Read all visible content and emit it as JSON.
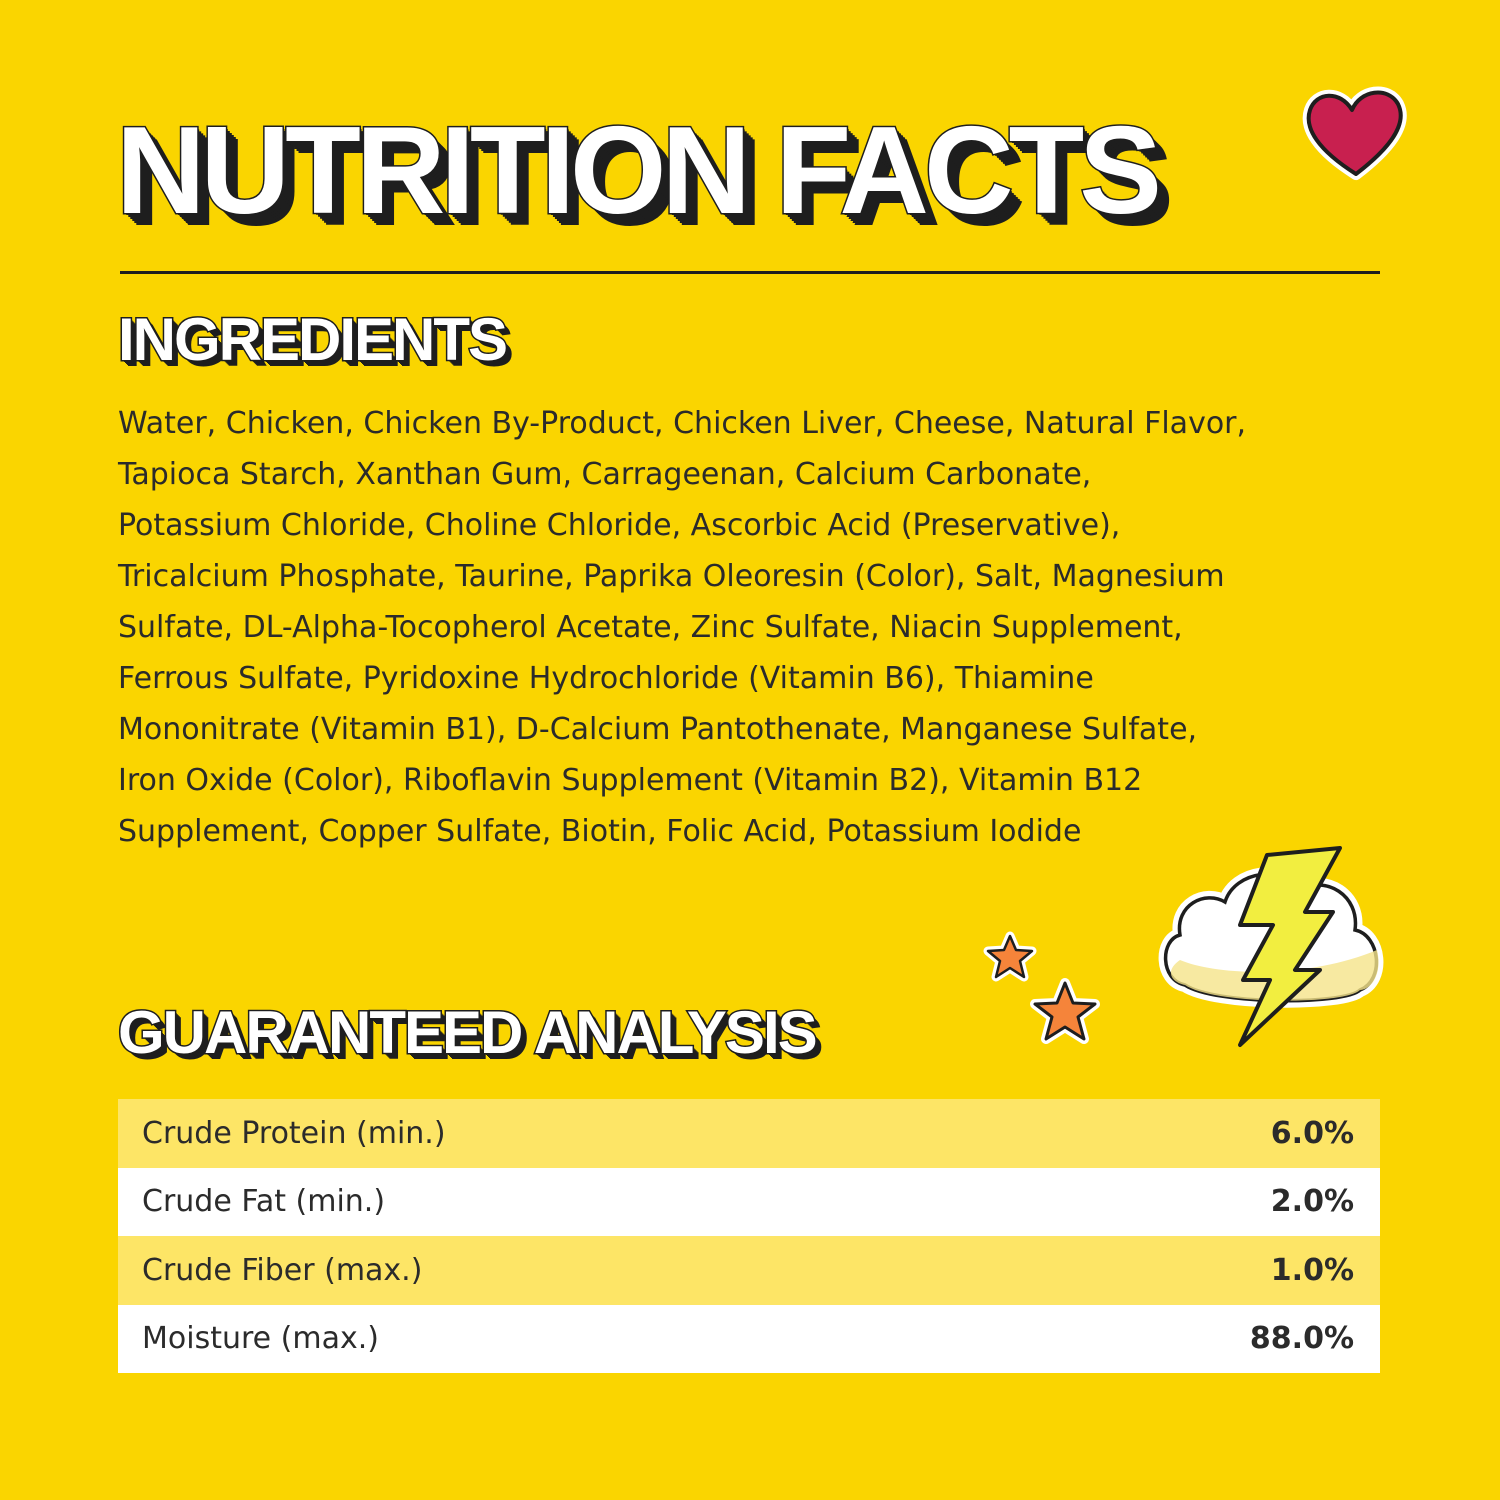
{
  "title": "NUTRITION FACTS",
  "ingredients": {
    "heading": "INGREDIENTS",
    "lines": [
      "Water, Chicken, Chicken By-Product, Chicken Liver, Cheese, Natural Flavor,",
      "Tapioca Starch, Xanthan Gum, Carrageenan, Calcium Carbonate,",
      "Potassium Chloride, Choline Chloride, Ascorbic Acid (Preservative),",
      "Tricalcium Phosphate, Taurine, Paprika Oleoresin (Color), Salt, Magnesium",
      "Sulfate, DL-Alpha-Tocopherol Acetate, Zinc Sulfate, Niacin Supplement,",
      "Ferrous Sulfate, Pyridoxine Hydrochloride (Vitamin B6), Thiamine",
      "Mononitrate (Vitamin B1), D-Calcium Pantothenate, Manganese Sulfate,",
      "Iron Oxide (Color), Riboflavin Supplement (Vitamin B2), Vitamin B12",
      "Supplement, Copper Sulfate, Biotin, Folic Acid, Potassium Iodide"
    ]
  },
  "analysis": {
    "heading": "GUARANTEED ANALYSIS",
    "rows": [
      {
        "label": "Crude Protein (min.)",
        "value": "6.0%"
      },
      {
        "label": "Crude Fat (min.)",
        "value": "2.0%"
      },
      {
        "label": "Crude Fiber (max.)",
        "value": "1.0%"
      },
      {
        "label": "Moisture (max.)",
        "value": "88.0%"
      }
    ]
  },
  "decorations": [
    "heart-icon",
    "star-icon",
    "star-icon",
    "lightning-cloud-icon"
  ],
  "colors": {
    "background": "#fad500",
    "row_alt": "#fde566",
    "heart": "#c8204f",
    "star": "#f5843a"
  }
}
